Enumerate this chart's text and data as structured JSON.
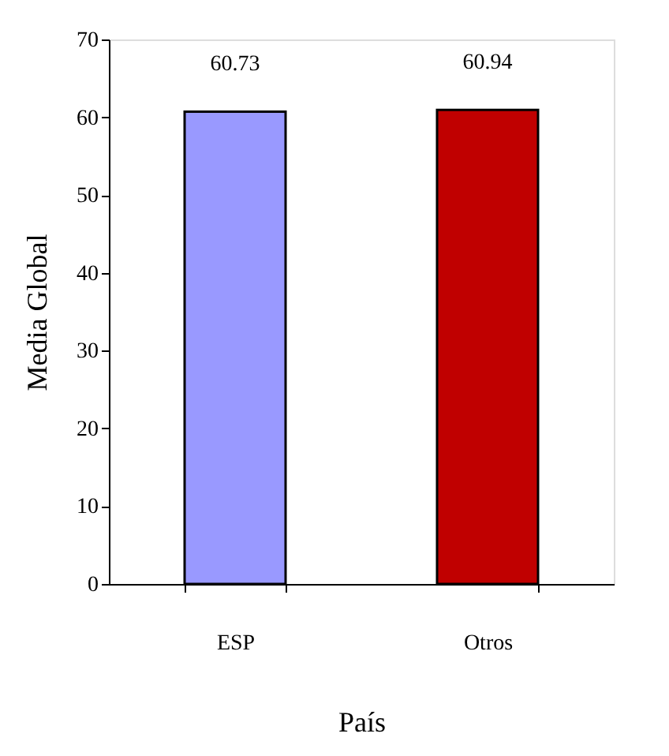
{
  "chart_data": {
    "type": "bar",
    "xlabel": "País",
    "ylabel": "Media Global",
    "categories": [
      "ESP",
      "Otros"
    ],
    "values": [
      60.73,
      60.94
    ],
    "colors": [
      "#9999ff",
      "#c00000"
    ],
    "ylim": [
      0,
      70
    ],
    "yticks": [
      0,
      10,
      20,
      30,
      40,
      50,
      60,
      70
    ],
    "data_labels": true,
    "grid": false,
    "legend": false
  }
}
